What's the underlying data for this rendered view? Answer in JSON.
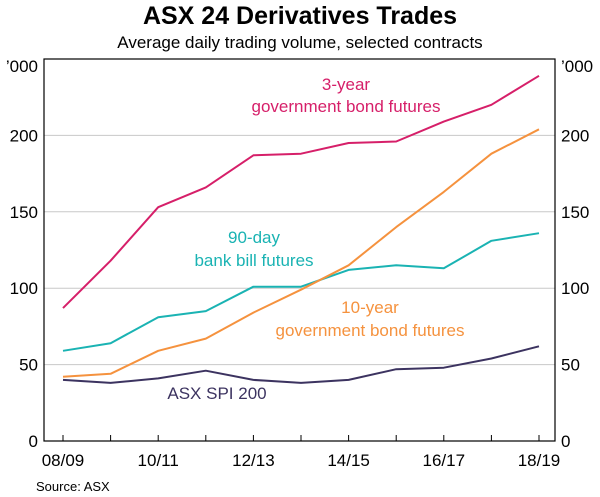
{
  "chart_data": {
    "type": "line",
    "title": "ASX 24 Derivatives Trades",
    "subtitle": "Average daily trading volume, selected contracts",
    "ylabel_left": "’000",
    "ylabel_right": "’000",
    "ylim": [
      0,
      250
    ],
    "yticks": [
      0,
      50,
      100,
      150,
      200
    ],
    "x": [
      "08/09",
      "09/10",
      "10/11",
      "11/12",
      "12/13",
      "13/14",
      "14/15",
      "15/16",
      "16/17",
      "17/18",
      "18/19"
    ],
    "xtick_labels": [
      "08/09",
      "10/11",
      "12/13",
      "14/15",
      "16/17",
      "18/19"
    ],
    "series": [
      {
        "name": "3-year government bond futures",
        "label_lines": [
          "3-year",
          "government bond futures"
        ],
        "color": "#d61f69",
        "values": [
          87,
          118,
          153,
          166,
          187,
          188,
          195,
          196,
          209,
          220,
          239
        ]
      },
      {
        "name": "90-day bank bill futures",
        "label_lines": [
          "90-day",
          "bank bill futures"
        ],
        "color": "#1ab3b3",
        "values": [
          59,
          64,
          81,
          85,
          101,
          101,
          112,
          115,
          113,
          131,
          136
        ]
      },
      {
        "name": "10-year government bond futures",
        "label_lines": [
          "10-year",
          "government bond futures"
        ],
        "color": "#f5923e",
        "values": [
          42,
          44,
          59,
          67,
          84,
          99,
          115,
          140,
          163,
          188,
          204
        ]
      },
      {
        "name": "ASX SPI 200",
        "label_lines": [
          "ASX SPI 200"
        ],
        "color": "#3c3360",
        "values": [
          40,
          38,
          41,
          46,
          40,
          38,
          40,
          47,
          48,
          54,
          62
        ]
      }
    ],
    "source": "Source:   ASX"
  }
}
